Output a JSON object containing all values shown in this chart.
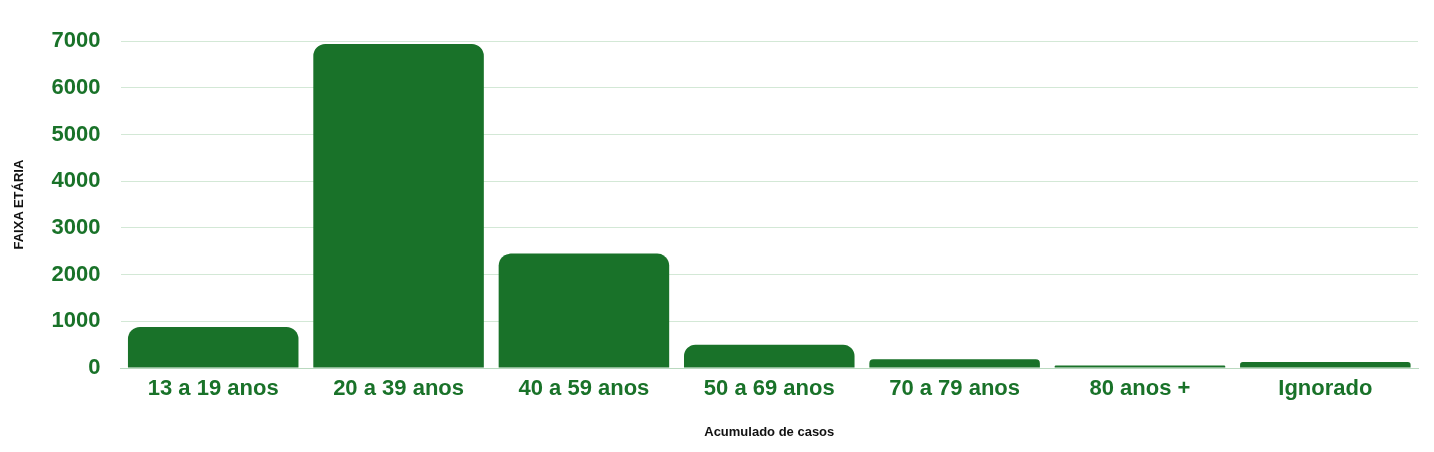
{
  "chart_data": {
    "type": "bar",
    "xlabel": "Acumulado de casos",
    "ylabel": "FAIXA ETÁRIA",
    "categories": [
      "13 a 19 anos",
      "20 a 39 anos",
      "40 a 59 anos",
      "50 a 69 anos",
      "70 a 79 anos",
      "80 anos +",
      "Ignorado"
    ],
    "values": [
      880,
      6940,
      2450,
      500,
      185,
      55,
      130
    ],
    "color": "#197229",
    "ylim": [
      0,
      7000
    ],
    "yticks": [
      0,
      1000,
      2000,
      3000,
      4000,
      5000,
      6000,
      7000
    ],
    "grid": "y",
    "legend": false
  }
}
